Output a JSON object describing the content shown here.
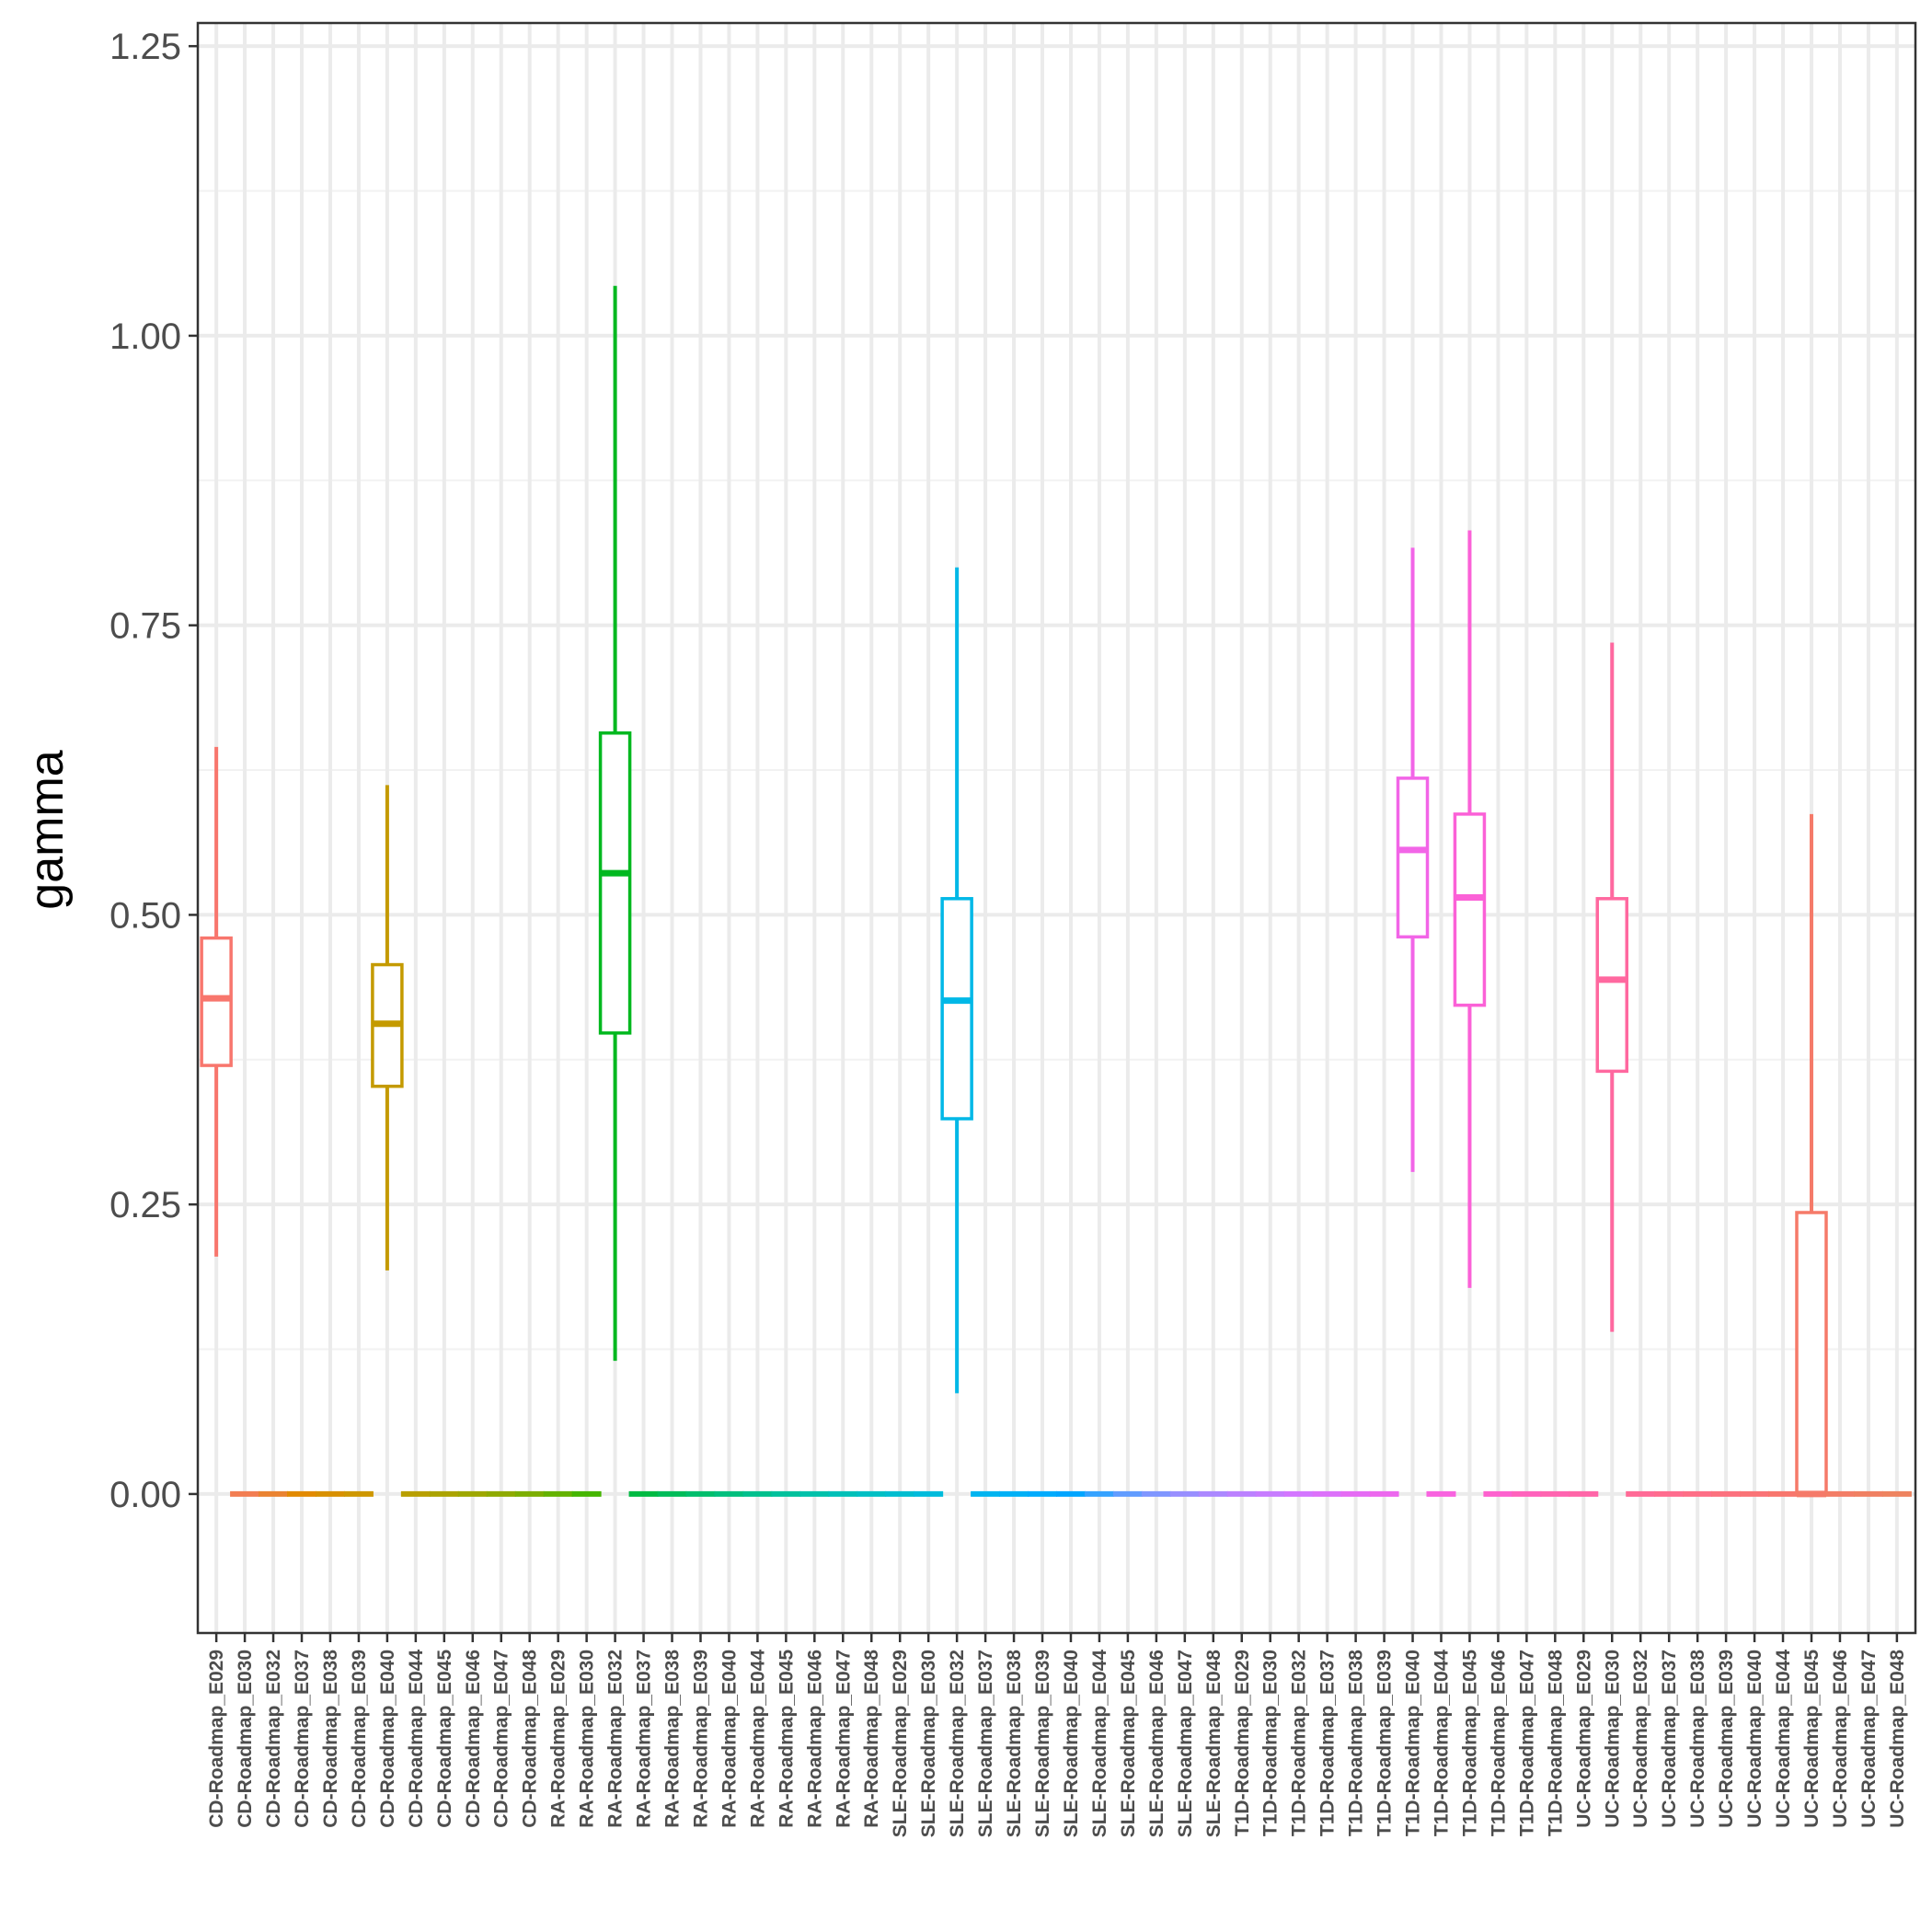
{
  "chart_data": {
    "type": "boxplot",
    "title": "",
    "xlabel": "",
    "ylabel": "gamma",
    "ylim": [
      -0.12,
      1.27
    ],
    "yticks": [
      "0.00",
      "0.25",
      "0.50",
      "0.75",
      "1.00",
      "1.25"
    ],
    "grid": true,
    "legend": "none",
    "categories": [
      "CD-Roadmap_E029",
      "CD-Roadmap_E030",
      "CD-Roadmap_E032",
      "CD-Roadmap_E037",
      "CD-Roadmap_E038",
      "CD-Roadmap_E039",
      "CD-Roadmap_E040",
      "CD-Roadmap_E044",
      "CD-Roadmap_E045",
      "CD-Roadmap_E046",
      "CD-Roadmap_E047",
      "CD-Roadmap_E048",
      "RA-Roadmap_E029",
      "RA-Roadmap_E030",
      "RA-Roadmap_E032",
      "RA-Roadmap_E037",
      "RA-Roadmap_E038",
      "RA-Roadmap_E039",
      "RA-Roadmap_E040",
      "RA-Roadmap_E044",
      "RA-Roadmap_E045",
      "RA-Roadmap_E046",
      "RA-Roadmap_E047",
      "RA-Roadmap_E048",
      "SLE-Roadmap_E029",
      "SLE-Roadmap_E030",
      "SLE-Roadmap_E032",
      "SLE-Roadmap_E037",
      "SLE-Roadmap_E038",
      "SLE-Roadmap_E039",
      "SLE-Roadmap_E040",
      "SLE-Roadmap_E044",
      "SLE-Roadmap_E045",
      "SLE-Roadmap_E046",
      "SLE-Roadmap_E047",
      "SLE-Roadmap_E048",
      "T1D-Roadmap_E029",
      "T1D-Roadmap_E030",
      "T1D-Roadmap_E032",
      "T1D-Roadmap_E037",
      "T1D-Roadmap_E038",
      "T1D-Roadmap_E039",
      "T1D-Roadmap_E040",
      "T1D-Roadmap_E044",
      "T1D-Roadmap_E045",
      "T1D-Roadmap_E046",
      "T1D-Roadmap_E047",
      "T1D-Roadmap_E048",
      "UC-Roadmap_E029",
      "UC-Roadmap_E030",
      "UC-Roadmap_E032",
      "UC-Roadmap_E037",
      "UC-Roadmap_E038",
      "UC-Roadmap_E039",
      "UC-Roadmap_E040",
      "UC-Roadmap_E044",
      "UC-Roadmap_E045",
      "UC-Roadmap_E046",
      "UC-Roadmap_E047",
      "UC-Roadmap_E048"
    ],
    "boxes": [
      {
        "min": 0.205,
        "q1": 0.37,
        "median": 0.428,
        "q3": 0.48,
        "max": 0.645
      },
      {
        "min": 0,
        "q1": 0,
        "median": 0,
        "q3": 0,
        "max": 0
      },
      {
        "min": 0,
        "q1": 0,
        "median": 0,
        "q3": 0,
        "max": 0
      },
      {
        "min": 0,
        "q1": 0,
        "median": 0,
        "q3": 0,
        "max": 0
      },
      {
        "min": 0,
        "q1": 0,
        "median": 0,
        "q3": 0,
        "max": 0
      },
      {
        "min": 0,
        "q1": 0,
        "median": 0,
        "q3": 0,
        "max": 0
      },
      {
        "min": 0.193,
        "q1": 0.352,
        "median": 0.406,
        "q3": 0.457,
        "max": 0.612
      },
      {
        "min": 0,
        "q1": 0,
        "median": 0,
        "q3": 0,
        "max": 0
      },
      {
        "min": 0,
        "q1": 0,
        "median": 0,
        "q3": 0,
        "max": 0
      },
      {
        "min": 0,
        "q1": 0,
        "median": 0,
        "q3": 0,
        "max": 0
      },
      {
        "min": 0,
        "q1": 0,
        "median": 0,
        "q3": 0,
        "max": 0
      },
      {
        "min": 0,
        "q1": 0,
        "median": 0,
        "q3": 0,
        "max": 0
      },
      {
        "min": 0,
        "q1": 0,
        "median": 0,
        "q3": 0,
        "max": 0
      },
      {
        "min": 0,
        "q1": 0,
        "median": 0,
        "q3": 0,
        "max": 0
      },
      {
        "min": 0.115,
        "q1": 0.398,
        "median": 0.536,
        "q3": 0.657,
        "max": 1.043
      },
      {
        "min": 0,
        "q1": 0,
        "median": 0,
        "q3": 0,
        "max": 0
      },
      {
        "min": 0,
        "q1": 0,
        "median": 0,
        "q3": 0,
        "max": 0
      },
      {
        "min": 0,
        "q1": 0,
        "median": 0,
        "q3": 0,
        "max": 0
      },
      {
        "min": 0,
        "q1": 0,
        "median": 0,
        "q3": 0,
        "max": 0
      },
      {
        "min": 0,
        "q1": 0,
        "median": 0,
        "q3": 0,
        "max": 0
      },
      {
        "min": 0,
        "q1": 0,
        "median": 0,
        "q3": 0,
        "max": 0
      },
      {
        "min": 0,
        "q1": 0,
        "median": 0,
        "q3": 0,
        "max": 0
      },
      {
        "min": 0,
        "q1": 0,
        "median": 0,
        "q3": 0,
        "max": 0
      },
      {
        "min": 0,
        "q1": 0,
        "median": 0,
        "q3": 0,
        "max": 0
      },
      {
        "min": 0,
        "q1": 0,
        "median": 0,
        "q3": 0,
        "max": 0
      },
      {
        "min": 0,
        "q1": 0,
        "median": 0,
        "q3": 0,
        "max": 0
      },
      {
        "min": 0.087,
        "q1": 0.324,
        "median": 0.426,
        "q3": 0.514,
        "max": 0.8
      },
      {
        "min": 0,
        "q1": 0,
        "median": 0,
        "q3": 0,
        "max": 0
      },
      {
        "min": 0,
        "q1": 0,
        "median": 0,
        "q3": 0,
        "max": 0
      },
      {
        "min": 0,
        "q1": 0,
        "median": 0,
        "q3": 0,
        "max": 0
      },
      {
        "min": 0,
        "q1": 0,
        "median": 0,
        "q3": 0,
        "max": 0
      },
      {
        "min": 0,
        "q1": 0,
        "median": 0,
        "q3": 0,
        "max": 0
      },
      {
        "min": 0,
        "q1": 0,
        "median": 0,
        "q3": 0,
        "max": 0
      },
      {
        "min": 0,
        "q1": 0,
        "median": 0,
        "q3": 0,
        "max": 0
      },
      {
        "min": 0,
        "q1": 0,
        "median": 0,
        "q3": 0,
        "max": 0
      },
      {
        "min": 0,
        "q1": 0,
        "median": 0,
        "q3": 0,
        "max": 0
      },
      {
        "min": 0,
        "q1": 0,
        "median": 0,
        "q3": 0,
        "max": 0
      },
      {
        "min": 0,
        "q1": 0,
        "median": 0,
        "q3": 0,
        "max": 0
      },
      {
        "min": 0,
        "q1": 0,
        "median": 0,
        "q3": 0,
        "max": 0
      },
      {
        "min": 0,
        "q1": 0,
        "median": 0,
        "q3": 0,
        "max": 0
      },
      {
        "min": 0,
        "q1": 0,
        "median": 0,
        "q3": 0,
        "max": 0
      },
      {
        "min": 0,
        "q1": 0,
        "median": 0,
        "q3": 0,
        "max": 0
      },
      {
        "min": 0.278,
        "q1": 0.481,
        "median": 0.556,
        "q3": 0.618,
        "max": 0.817
      },
      {
        "min": 0,
        "q1": 0,
        "median": 0,
        "q3": 0,
        "max": 0
      },
      {
        "min": 0.178,
        "q1": 0.422,
        "median": 0.515,
        "q3": 0.587,
        "max": 0.832
      },
      {
        "min": 0,
        "q1": 0,
        "median": 0,
        "q3": 0,
        "max": 0
      },
      {
        "min": 0,
        "q1": 0,
        "median": 0,
        "q3": 0,
        "max": 0
      },
      {
        "min": 0,
        "q1": 0,
        "median": 0,
        "q3": 0,
        "max": 0
      },
      {
        "min": 0,
        "q1": 0,
        "median": 0,
        "q3": 0,
        "max": 0
      },
      {
        "min": 0.14,
        "q1": 0.365,
        "median": 0.444,
        "q3": 0.514,
        "max": 0.735
      },
      {
        "min": 0,
        "q1": 0,
        "median": 0,
        "q3": 0,
        "max": 0
      },
      {
        "min": 0,
        "q1": 0,
        "median": 0,
        "q3": 0,
        "max": 0
      },
      {
        "min": 0,
        "q1": 0,
        "median": 0,
        "q3": 0,
        "max": 0
      },
      {
        "min": 0,
        "q1": 0,
        "median": 0,
        "q3": 0,
        "max": 0
      },
      {
        "min": 0,
        "q1": 0,
        "median": 0,
        "q3": 0,
        "max": 0
      },
      {
        "min": 0,
        "q1": 0,
        "median": 0,
        "q3": 0,
        "max": 0
      },
      {
        "min": 0,
        "q1": 0,
        "median": 0,
        "q3": 0.243,
        "max": 0.587
      },
      {
        "min": 0,
        "q1": 0,
        "median": 0,
        "q3": 0,
        "max": 0
      },
      {
        "min": 0,
        "q1": 0,
        "median": 0,
        "q3": 0,
        "max": 0
      },
      {
        "min": 0,
        "q1": 0,
        "median": 0,
        "q3": 0,
        "max": 0
      }
    ],
    "colors": [
      "#F8766D",
      "#F27D52",
      "#EA8331",
      "#E28A00",
      "#D89000",
      "#CE9700",
      "#C49A00",
      "#B89F00",
      "#ABA300",
      "#9EA700",
      "#8FAA00",
      "#7CAE00",
      "#64B200",
      "#45B500",
      "#00B81F",
      "#00BA42",
      "#00BC59",
      "#00BE6C",
      "#00BF7D",
      "#00C08D",
      "#00C19C",
      "#00C1AA",
      "#00C0B8",
      "#00BFC4",
      "#00BDD0",
      "#00BBDC",
      "#00B8E7",
      "#00B4F0",
      "#00B0F6",
      "#00ABFD",
      "#00A5FF",
      "#35A2FF",
      "#619CFF",
      "#7F96FF",
      "#988FFF",
      "#AB88FF",
      "#BB81FF",
      "#C77CFF",
      "#D376FF",
      "#DC71FA",
      "#E56BF4",
      "#EC68EE",
      "#F265E7",
      "#F863DF",
      "#FB61D7",
      "#FD61CE",
      "#FF62BC",
      "#FF64B0",
      "#FF66A8",
      "#FF689F",
      "#FF6A96",
      "#FF6C8E",
      "#FE6E86",
      "#FC717E",
      "#FA7376",
      "#F8766D",
      "#F57A69",
      "#F37D66",
      "#F08062",
      "#EE835F"
    ]
  }
}
